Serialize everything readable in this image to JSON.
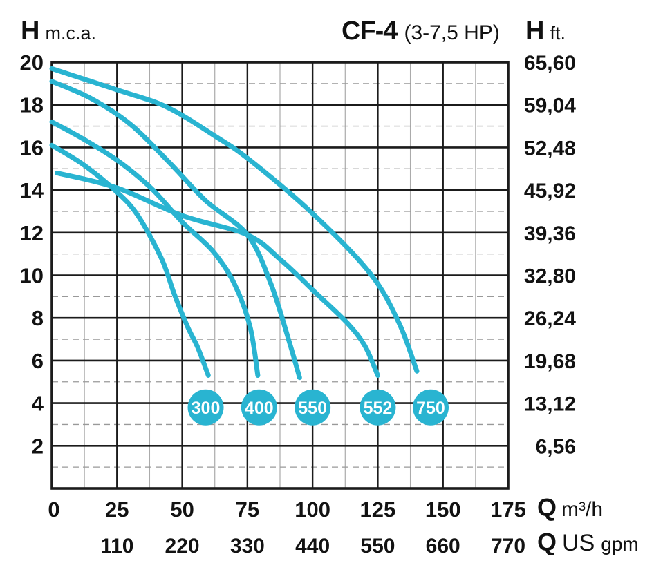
{
  "header": {
    "left_axis_title": {
      "symbol": "H",
      "unit": "m.c.a."
    },
    "chart_title": {
      "model": "CF-4",
      "power": "(3-7,5 HP)"
    },
    "right_axis_title": {
      "symbol": "H",
      "unit": "ft."
    }
  },
  "footer": {
    "flow_axis_m3h": {
      "symbol": "Q",
      "unit": "m³/h"
    },
    "flow_axis_gpm": {
      "symbol": "Q",
      "unit_major": "US",
      "unit_minor": "gpm"
    }
  },
  "colors": {
    "curve": "#29b4d1",
    "badge_fill": "#29b4d1",
    "badge_text": "#ffffff",
    "grid_major": "#1b1b1b",
    "grid_minor_h": "#999999",
    "grid_minor_v": "#ababab",
    "text": "#121212"
  },
  "chart_data": {
    "type": "line",
    "title": "CF-4 (3-7,5 HP)",
    "xlabel": "Q m³/h",
    "xlabel_secondary": "Q US gpm",
    "ylabel": "H m.c.a.",
    "ylabel_secondary": "H ft.",
    "x_range": [
      0,
      175
    ],
    "y_range": [
      0,
      20
    ],
    "x_major_ticks": [
      0,
      25,
      50,
      75,
      100,
      125,
      150,
      175
    ],
    "x_major_labels": [
      "0",
      "25",
      "50",
      "75",
      "100",
      "125",
      "150",
      "175"
    ],
    "x_secondary_ticks": [
      25,
      50,
      75,
      100,
      125,
      150,
      175
    ],
    "x_secondary_labels": [
      "110",
      "220",
      "330",
      "440",
      "550",
      "660",
      "770"
    ],
    "x_minor_step": 12.5,
    "y_major_ticks": [
      20,
      18,
      16,
      14,
      12,
      10,
      8,
      6,
      4,
      2
    ],
    "y_major_labels": [
      "20",
      "18",
      "16",
      "14",
      "12",
      "10",
      "8",
      "6",
      "4",
      "2"
    ],
    "y_secondary_labels": [
      "65,60",
      "59,04",
      "52,48",
      "45,92",
      "39,36",
      "32,80",
      "26,24",
      "19,68",
      "13,12",
      "6,56"
    ],
    "y_minor_ticks": [
      19,
      17,
      15,
      13,
      11,
      9,
      7,
      5,
      3,
      1
    ],
    "grid": true,
    "legend_position": "none",
    "series": [
      {
        "name": "750",
        "points": [
          [
            0,
            19.7
          ],
          [
            25,
            18.7
          ],
          [
            44,
            17.9
          ],
          [
            63,
            16.5
          ],
          [
            76,
            15.4
          ],
          [
            100,
            12.9
          ],
          [
            122,
            10.1
          ],
          [
            133,
            7.8
          ],
          [
            140,
            5.5
          ]
        ]
      },
      {
        "name": "552",
        "points": [
          [
            2,
            14.8
          ],
          [
            25,
            14.1
          ],
          [
            50,
            12.8
          ],
          [
            75,
            11.9
          ],
          [
            88,
            10.7
          ],
          [
            101,
            9.2
          ],
          [
            113,
            7.8
          ],
          [
            120,
            6.7
          ],
          [
            125,
            5.3
          ]
        ]
      },
      {
        "name": "550",
        "points": [
          [
            0,
            19.1
          ],
          [
            15,
            18.3
          ],
          [
            30,
            17.1
          ],
          [
            45,
            15.3
          ],
          [
            59,
            13.5
          ],
          [
            75,
            11.9
          ],
          [
            84,
            9.6
          ],
          [
            91,
            6.9
          ],
          [
            95,
            5.2
          ]
        ]
      },
      {
        "name": "400",
        "points": [
          [
            0,
            17.2
          ],
          [
            12,
            16.4
          ],
          [
            25,
            15.4
          ],
          [
            38,
            14.1
          ],
          [
            50,
            12.5
          ],
          [
            62,
            11.1
          ],
          [
            70,
            9.6
          ],
          [
            76,
            7.6
          ],
          [
            79,
            5.3
          ]
        ]
      },
      {
        "name": "300",
        "points": [
          [
            0,
            16.1
          ],
          [
            12,
            15.2
          ],
          [
            25,
            13.9
          ],
          [
            33,
            12.8
          ],
          [
            42,
            10.8
          ],
          [
            47,
            9.1
          ],
          [
            52,
            7.6
          ],
          [
            56,
            6.6
          ],
          [
            60,
            5.3
          ]
        ]
      }
    ],
    "badges": [
      {
        "label": "300",
        "q": 59
      },
      {
        "label": "400",
        "q": 79.5
      },
      {
        "label": "550",
        "q": 100
      },
      {
        "label": "552",
        "q": 125
      },
      {
        "label": "750",
        "q": 145.3
      }
    ],
    "badge_h": 3.8
  }
}
